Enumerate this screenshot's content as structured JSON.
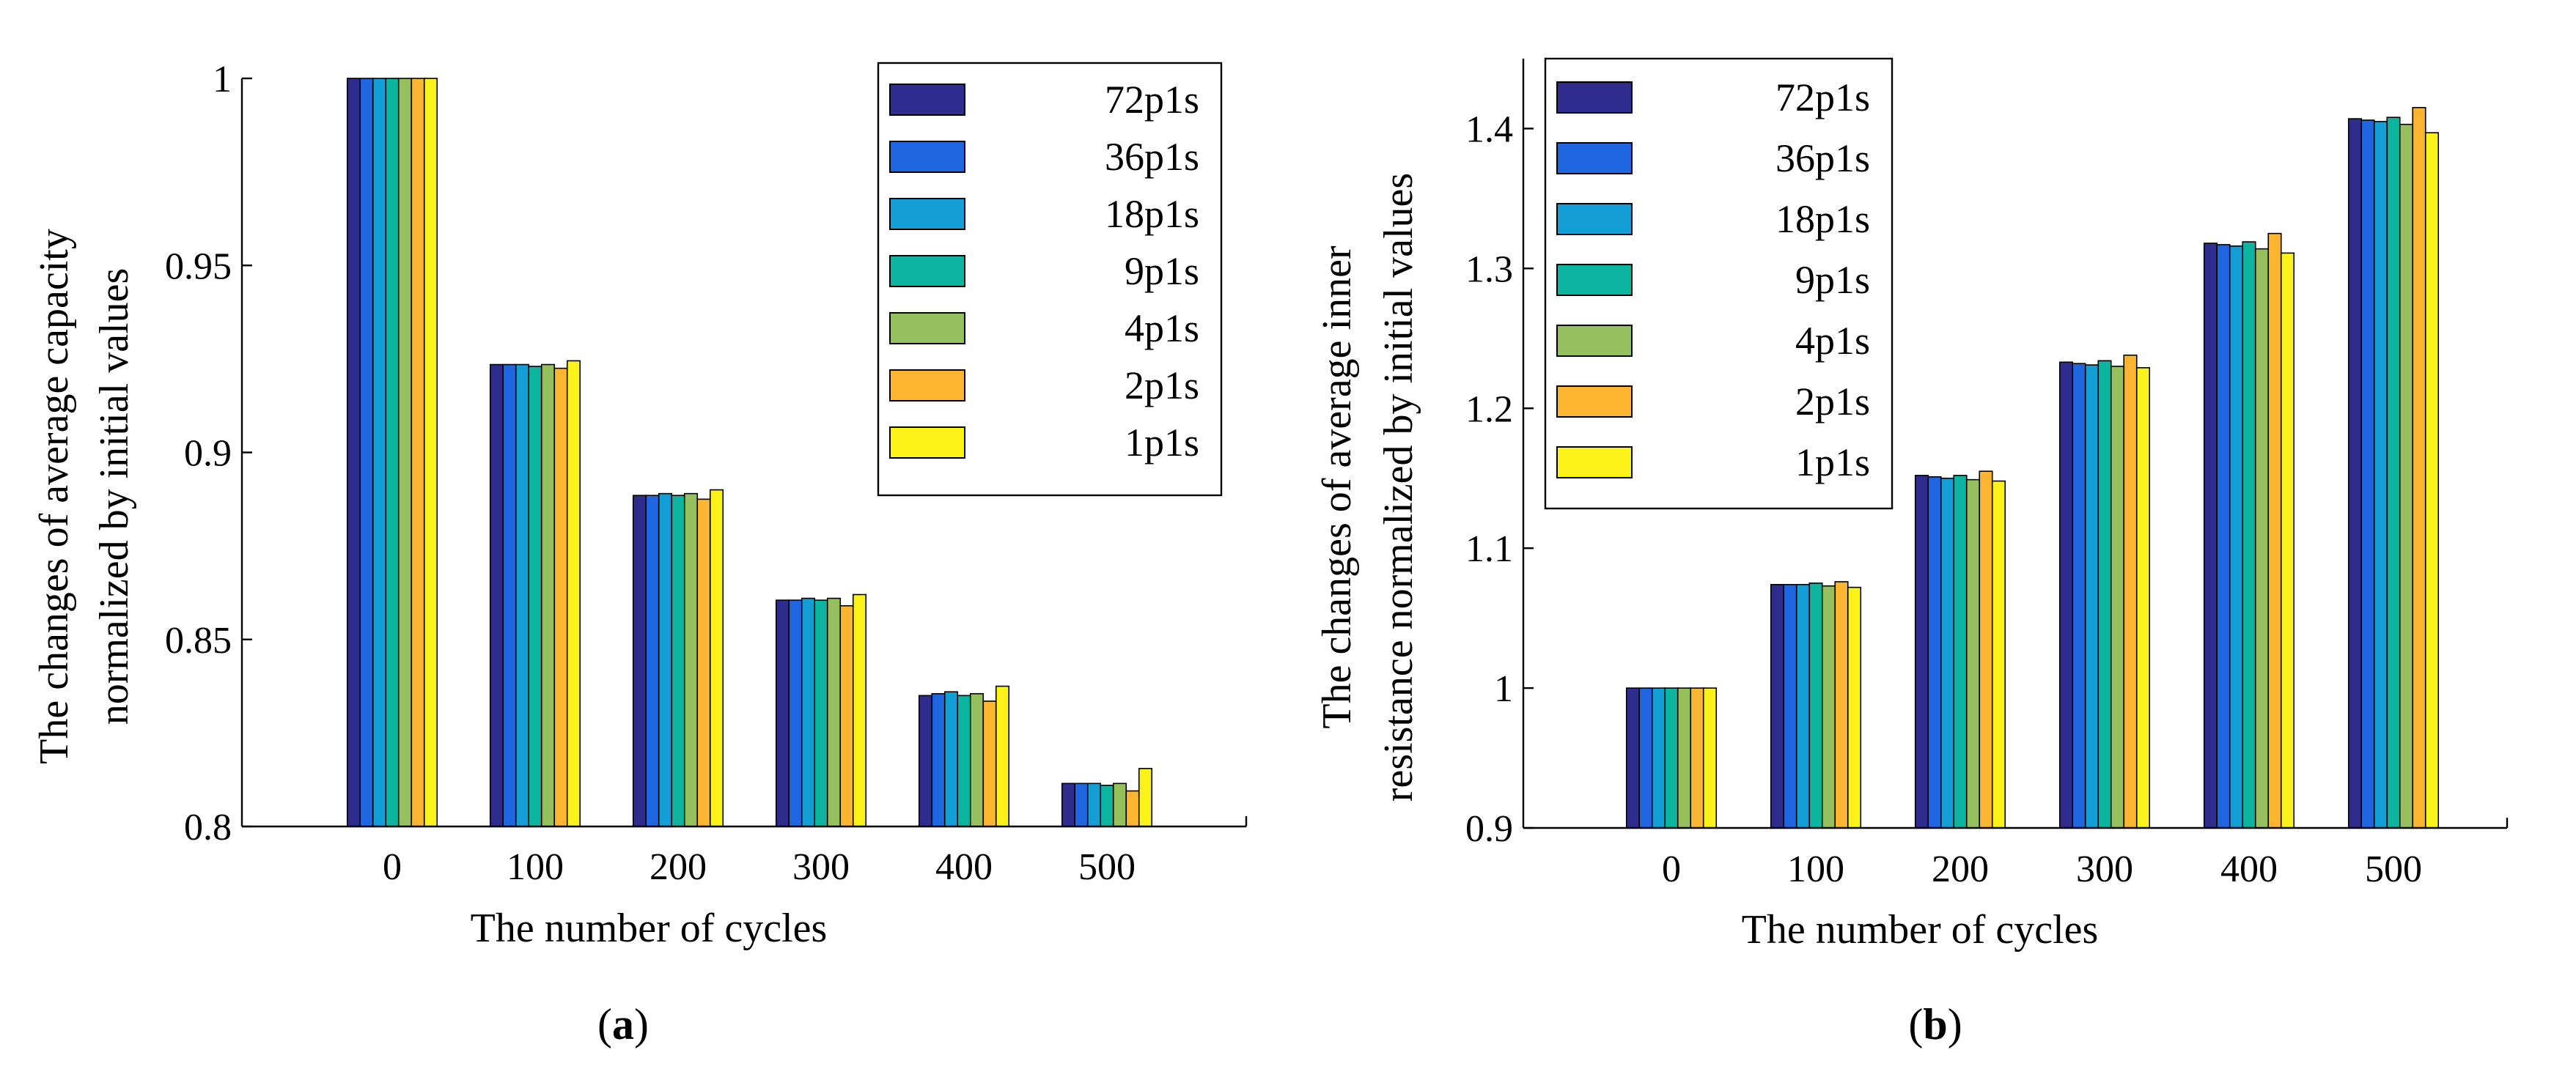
{
  "series_names": [
    "72p1s",
    "36p1s",
    "18p1s",
    "9p1s",
    "4p1s",
    "2p1s",
    "1p1s"
  ],
  "series_colors": [
    "#2E2C8C",
    "#1F66E0",
    "#139FD6",
    "#0DB4A0",
    "#96BF5E",
    "#FBB531",
    "#FAF219"
  ],
  "chart_data": [
    {
      "type": "bar",
      "panel": "(a)",
      "panel_letter": "a",
      "title": "",
      "xlabel": "The number of cycles",
      "ylabel_line1": "The changes of average capacity",
      "ylabel_line2": "normalized by initial values",
      "categories": [
        "0",
        "100",
        "200",
        "300",
        "400",
        "500"
      ],
      "ylim": [
        0.8,
        1.0
      ],
      "yticks": [
        0.8,
        0.85,
        0.9,
        0.95,
        1
      ],
      "ytick_labels": [
        "0.8",
        "0.85",
        "0.9",
        "0.95",
        "1"
      ],
      "legend_position": "top-right",
      "series": [
        {
          "name": "72p1s",
          "values": [
            1.0,
            0.9235,
            0.8885,
            0.8605,
            0.835,
            0.8115
          ]
        },
        {
          "name": "36p1s",
          "values": [
            1.0,
            0.9235,
            0.8885,
            0.8605,
            0.8355,
            0.8115
          ]
        },
        {
          "name": "18p1s",
          "values": [
            1.0,
            0.9235,
            0.889,
            0.861,
            0.836,
            0.8115
          ]
        },
        {
          "name": "9p1s",
          "values": [
            1.0,
            0.923,
            0.8885,
            0.8605,
            0.835,
            0.811
          ]
        },
        {
          "name": "4p1s",
          "values": [
            1.0,
            0.9235,
            0.889,
            0.861,
            0.8355,
            0.8115
          ]
        },
        {
          "name": "2p1s",
          "values": [
            1.0,
            0.9225,
            0.8875,
            0.859,
            0.8335,
            0.8095
          ]
        },
        {
          "name": "1p1s",
          "values": [
            1.0,
            0.9245,
            0.89,
            0.862,
            0.8375,
            0.8155
          ]
        }
      ]
    },
    {
      "type": "bar",
      "panel": "(b)",
      "panel_letter": "b",
      "title": "",
      "xlabel": "The number of cycles",
      "ylabel_line1": "The changes of average inner",
      "ylabel_line2": "resistance normalized by initial values",
      "categories": [
        "0",
        "100",
        "200",
        "300",
        "400",
        "500"
      ],
      "ylim": [
        0.9,
        1.45
      ],
      "yticks": [
        0.9,
        1.0,
        1.1,
        1.2,
        1.3,
        1.4
      ],
      "ytick_labels": [
        "0.9",
        "1",
        "1.1",
        "1.2",
        "1.3",
        "1.4"
      ],
      "legend_position": "top-left",
      "series": [
        {
          "name": "72p1s",
          "values": [
            1.0,
            1.074,
            1.152,
            1.233,
            1.318,
            1.407
          ]
        },
        {
          "name": "36p1s",
          "values": [
            1.0,
            1.074,
            1.151,
            1.232,
            1.317,
            1.406
          ]
        },
        {
          "name": "18p1s",
          "values": [
            1.0,
            1.074,
            1.15,
            1.231,
            1.316,
            1.405
          ]
        },
        {
          "name": "9p1s",
          "values": [
            1.0,
            1.075,
            1.152,
            1.234,
            1.319,
            1.408
          ]
        },
        {
          "name": "4p1s",
          "values": [
            1.0,
            1.073,
            1.149,
            1.23,
            1.314,
            1.403
          ]
        },
        {
          "name": "2p1s",
          "values": [
            1.0,
            1.076,
            1.155,
            1.238,
            1.325,
            1.415
          ]
        },
        {
          "name": "1p1s",
          "values": [
            1.0,
            1.072,
            1.148,
            1.229,
            1.311,
            1.397
          ]
        }
      ]
    }
  ]
}
